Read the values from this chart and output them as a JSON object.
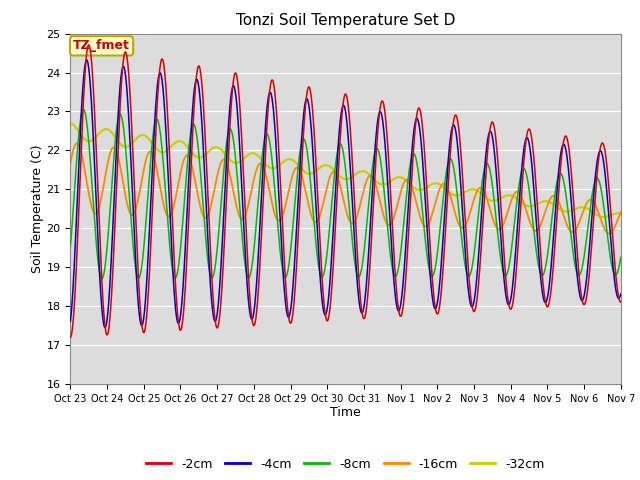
{
  "title": "Tonzi Soil Temperature Set D",
  "xlabel": "Time",
  "ylabel": "Soil Temperature (C)",
  "ylim": [
    16.0,
    25.0
  ],
  "yticks": [
    16.0,
    17.0,
    18.0,
    19.0,
    20.0,
    21.0,
    22.0,
    23.0,
    24.0,
    25.0
  ],
  "xtick_labels": [
    "Oct 23",
    "Oct 24",
    "Oct 25",
    "Oct 26",
    "Oct 27",
    "Oct 28",
    "Oct 29",
    "Oct 30",
    "Oct 31",
    "Nov 1",
    "Nov 2",
    "Nov 3",
    "Nov 4",
    "Nov 5",
    "Nov 6",
    "Nov 7"
  ],
  "colors": {
    "-2cm": "#dd0000",
    "-4cm": "#0000cc",
    "-8cm": "#00bb00",
    "-16cm": "#ff8800",
    "-32cm": "#cccc00"
  },
  "legend_labels": [
    "-2cm",
    "-4cm",
    "-8cm",
    "-16cm",
    "-32cm"
  ],
  "annotation_text": "TZ_fmet",
  "annotation_bg": "#ffffcc",
  "annotation_border": "#bbaa00",
  "background_inner": "#dcdcdc",
  "n_points": 1440,
  "total_days": 15
}
